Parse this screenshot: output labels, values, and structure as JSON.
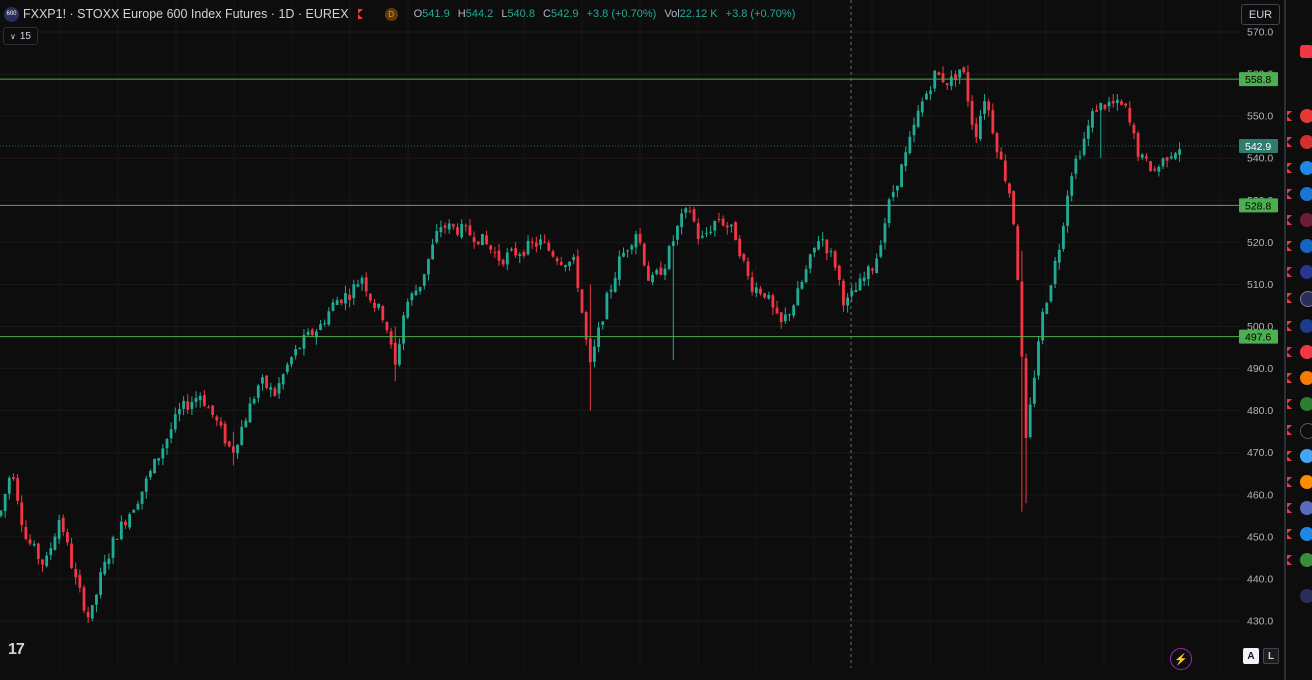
{
  "legend": {
    "logo_text": "600",
    "title": "FXXP1! · STOXX Europe 600 Index Futures · 1D · EUREX",
    "badge": "D",
    "open_key": "O",
    "open": "541.9",
    "high_key": "H",
    "high": "544.2",
    "low_key": "L",
    "low": "540.8",
    "close_key": "C",
    "close": "542.9",
    "change": "+3.8 (+0.70%)",
    "vol_key": "Vol",
    "vol": "22.12 K",
    "vol_change": "+3.8 (+0.70%)"
  },
  "interval_button": "15",
  "currency": "EUR",
  "logo": "17",
  "lightning_icon": "⚡",
  "scale_buttons": {
    "auto": "A",
    "log": "L"
  },
  "colors": {
    "up": "#22ab94",
    "down": "#f23645",
    "level_line": "#4caf50",
    "price_badge": "#2e7d6d",
    "background": "#0d0d0d"
  },
  "chart_data": {
    "type": "candlestick",
    "ylim": [
      425,
      572
    ],
    "y_ticks": [
      "570.0",
      "560.0",
      "550.0",
      "540.0",
      "530.0",
      "520.0",
      "510.0",
      "500.0",
      "490.0",
      "480.0",
      "470.0",
      "460.0",
      "450.0",
      "440.0",
      "430.0"
    ],
    "horizontal_levels": [
      "558.8",
      "528.8",
      "497.6"
    ],
    "last_price": "542.9",
    "price_path": [
      [
        0,
        455
      ],
      [
        12,
        467
      ],
      [
        25,
        450
      ],
      [
        45,
        443
      ],
      [
        60,
        455
      ],
      [
        75,
        440
      ],
      [
        90,
        430
      ],
      [
        100,
        440
      ],
      [
        115,
        450
      ],
      [
        140,
        460
      ],
      [
        160,
        470
      ],
      [
        180,
        480
      ],
      [
        200,
        484
      ],
      [
        215,
        478
      ],
      [
        232,
        470
      ],
      [
        245,
        478
      ],
      [
        260,
        487
      ],
      [
        275,
        484
      ],
      [
        290,
        492
      ],
      [
        305,
        497
      ],
      [
        320,
        500
      ],
      [
        335,
        506
      ],
      [
        350,
        508
      ],
      [
        362,
        512
      ],
      [
        372,
        506
      ],
      [
        385,
        502
      ],
      [
        395,
        490
      ],
      [
        405,
        505
      ],
      [
        420,
        510
      ],
      [
        440,
        524
      ],
      [
        460,
        523
      ],
      [
        480,
        521
      ],
      [
        500,
        516
      ],
      [
        520,
        518
      ],
      [
        540,
        520
      ],
      [
        560,
        516
      ],
      [
        575,
        515
      ],
      [
        590,
        490
      ],
      [
        605,
        505
      ],
      [
        620,
        516
      ],
      [
        637,
        523
      ],
      [
        650,
        510
      ],
      [
        665,
        515
      ],
      [
        680,
        525
      ],
      [
        690,
        528
      ],
      [
        700,
        520
      ],
      [
        718,
        526
      ],
      [
        735,
        522
      ],
      [
        750,
        510
      ],
      [
        765,
        508
      ],
      [
        780,
        500
      ],
      [
        795,
        506
      ],
      [
        820,
        522
      ],
      [
        835,
        515
      ],
      [
        845,
        505
      ],
      [
        860,
        510
      ],
      [
        875,
        515
      ],
      [
        890,
        530
      ],
      [
        905,
        540
      ],
      [
        920,
        552
      ],
      [
        935,
        560
      ],
      [
        950,
        558
      ],
      [
        962,
        562
      ],
      [
        975,
        545
      ],
      [
        985,
        555
      ],
      [
        1000,
        540
      ],
      [
        1012,
        530
      ],
      [
        1020,
        505
      ],
      [
        1025,
        470
      ],
      [
        1030,
        480
      ],
      [
        1040,
        500
      ],
      [
        1050,
        510
      ],
      [
        1060,
        520
      ],
      [
        1070,
        536
      ],
      [
        1085,
        545
      ],
      [
        1095,
        552
      ],
      [
        1110,
        553
      ],
      [
        1125,
        552
      ],
      [
        1140,
        540
      ],
      [
        1155,
        537
      ],
      [
        1168,
        541
      ],
      [
        1180,
        542.9
      ]
    ]
  }
}
